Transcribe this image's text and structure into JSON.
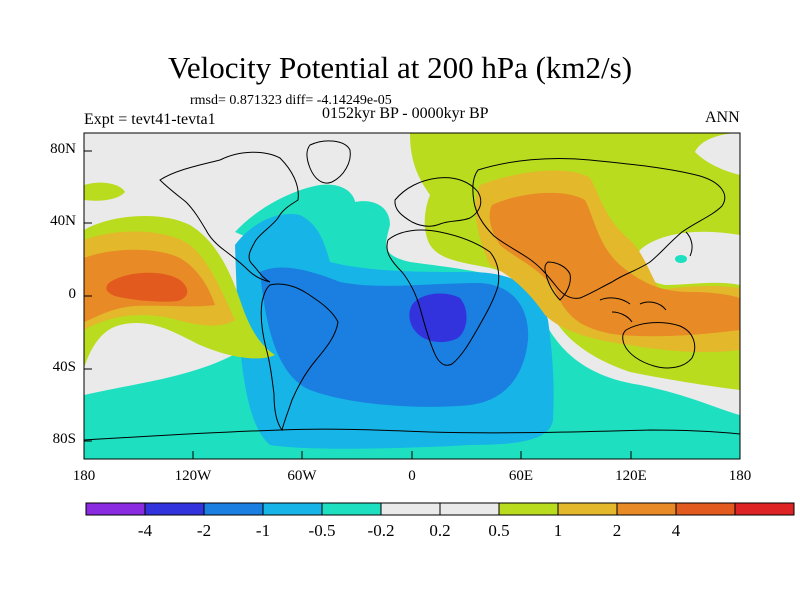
{
  "title": "Velocity Potential at 200 hPa (km2/s)",
  "stats_line": "rmsd= 0.871323 diff= -4.14249e-05",
  "experiment": "Expt = tevt41-tevta1",
  "period": "0152kyr BP - 0000kyr BP",
  "season": "ANN",
  "axes": {
    "y_ticks": [
      "80N",
      "40N",
      "0",
      "40S",
      "80S"
    ],
    "x_ticks": [
      "180",
      "120W",
      "60W",
      "0",
      "60E",
      "120E",
      "180"
    ]
  },
  "colorbar": {
    "colors": [
      "#8a2be2",
      "#3333dd",
      "#1a7fe0",
      "#17b4e8",
      "#1ee0c0",
      "#eaeaea",
      "#eaeaea",
      "#b9dc1f",
      "#e3b82b",
      "#e88a25",
      "#e35a1e",
      "#dd2323"
    ],
    "labels": [
      "-4",
      "-2",
      "-1",
      "-0.5",
      "-0.2",
      "0.2",
      "0.5",
      "1",
      "2",
      "4"
    ]
  },
  "map_colors": {
    "cyan": "#1ee0c0",
    "light_blue": "#17b4e8",
    "blue": "#1a7fe0",
    "dark_blue": "#3333dd",
    "neutral": "#eaeaea",
    "yellow_green": "#b9dc1f",
    "gold": "#e3b82b",
    "orange": "#e88a25",
    "red_orange": "#e35a1e"
  }
}
